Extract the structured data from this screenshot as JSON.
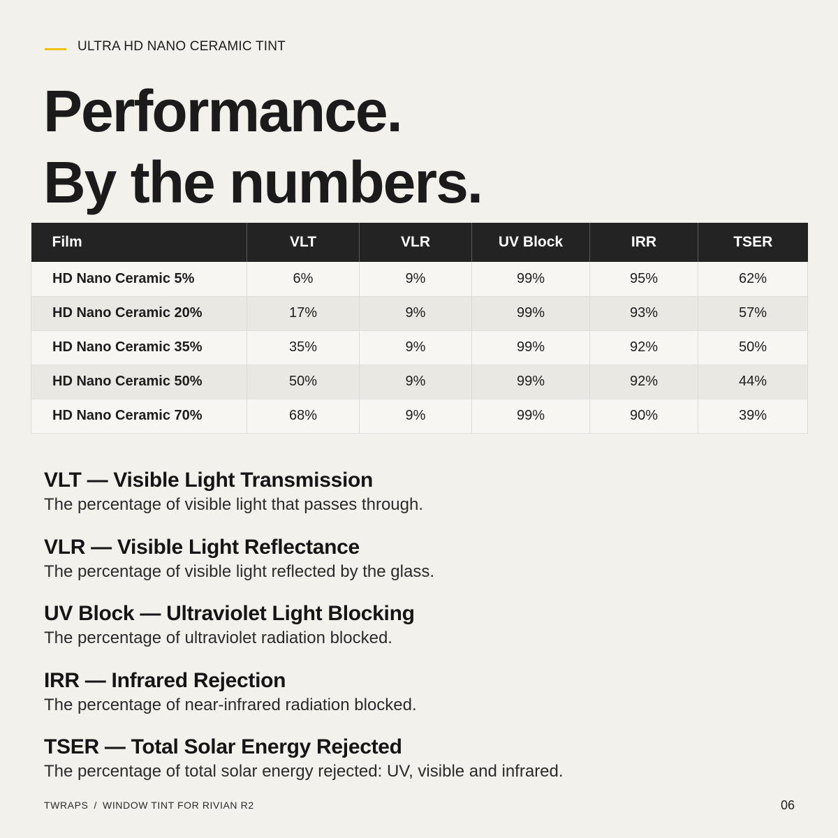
{
  "eyebrow": "ULTRA HD NANO CERAMIC TINT",
  "headline": {
    "line1": "Performance.",
    "line2": "By the numbers."
  },
  "table": {
    "headers": [
      "Film",
      "VLT",
      "VLR",
      "UV Block",
      "IRR",
      "TSER"
    ],
    "rows": [
      [
        "HD Nano Ceramic 5%",
        "6%",
        "9%",
        "99%",
        "95%",
        "62%"
      ],
      [
        "HD Nano Ceramic 20%",
        "17%",
        "9%",
        "99%",
        "93%",
        "57%"
      ],
      [
        "HD Nano Ceramic 35%",
        "35%",
        "9%",
        "99%",
        "92%",
        "50%"
      ],
      [
        "HD Nano Ceramic 50%",
        "50%",
        "9%",
        "99%",
        "92%",
        "44%"
      ],
      [
        "HD Nano Ceramic 70%",
        "68%",
        "9%",
        "99%",
        "90%",
        "39%"
      ]
    ]
  },
  "definitions": [
    {
      "term": "VLT — Visible Light Transmission",
      "desc": "The percentage of visible light that passes through."
    },
    {
      "term": "VLR — Visible Light Reflectance",
      "desc": "The percentage of visible light reflected by the glass."
    },
    {
      "term": "UV Block — Ultraviolet Light Blocking",
      "desc": "The percentage of ultraviolet radiation blocked."
    },
    {
      "term": "IRR — Infrared Rejection",
      "desc": "The percentage of near-infrared radiation blocked."
    },
    {
      "term": "TSER — Total Solar Energy Rejected",
      "desc": "The percentage of total solar energy rejected: UV, visible and infrared."
    }
  ],
  "footer": {
    "brand": "TWRAPS",
    "separator": "/",
    "subtitle": "WINDOW TINT FOR RIVIAN R2",
    "page": "06"
  },
  "colors": {
    "background": "#f3f1ec",
    "accent": "#f2c200",
    "header_bg": "#232323"
  }
}
